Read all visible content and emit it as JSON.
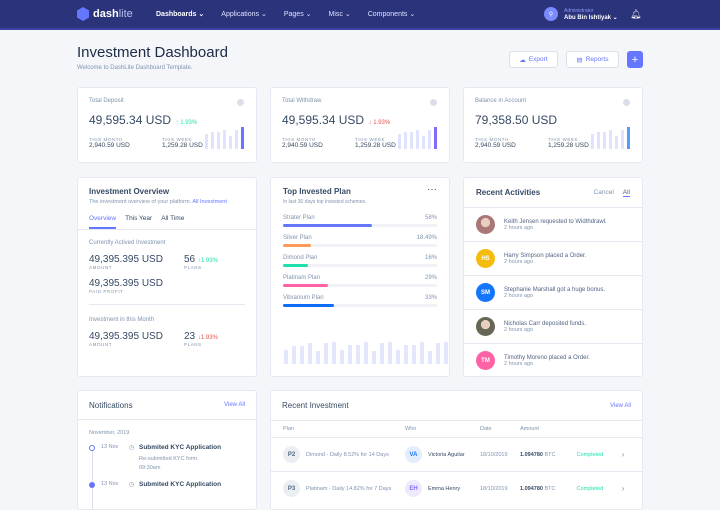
{
  "header": {
    "logo_bold": "dash",
    "logo_light": "lite",
    "nav": [
      "Dashboards",
      "Applications",
      "Pages",
      "Misc",
      "Components"
    ],
    "user_role": "Administrator",
    "user_name": "Abu Bin Ishtiyak"
  },
  "page": {
    "title": "Investment Dashboard",
    "subtitle": "Welcome to DashLite Dashboard Template.",
    "export_label": "Export",
    "reports_label": "Reports",
    "add_label": "+"
  },
  "stats": [
    {
      "label": "Total Deposit",
      "value": "49,595.34 USD",
      "change": "1.93%",
      "dir": "up",
      "this_month_label": "THIS MONTH",
      "this_month": "2,940.59 USD",
      "this_week_label": "THIS WEEK",
      "this_week": "1,259.28 USD",
      "accent": "#6576ff"
    },
    {
      "label": "Total Withdraw",
      "value": "49,595.34 USD",
      "change": "1.93%",
      "dir": "down",
      "this_month_label": "THIS MONTH",
      "this_month": "2,940.59 USD",
      "this_week_label": "THIS WEEK",
      "this_week": "1,259.28 USD",
      "accent": "#816bff"
    },
    {
      "label": "Balance in Account",
      "value": "79,358.50 USD",
      "change": "",
      "dir": "",
      "this_month_label": "THIS MONTH",
      "this_month": "2,940.59 USD",
      "this_week_label": "THIS WEEK",
      "this_week": "1,259.28 USD",
      "accent": "#559bfb"
    }
  ],
  "overview": {
    "title": "Investment Overview",
    "subtitle": "The investment overview of your platform.",
    "link": "All Investment",
    "tabs": [
      "Overview",
      "This Year",
      "All Time"
    ],
    "section1": "Currently Actived Investment",
    "amount1": "49,395.395 USD",
    "amount_label": "AMOUNT",
    "plans1": "56",
    "plans1_change": "1.93%",
    "plans_label": "PLANS",
    "profit": "49,395.395 USD",
    "profit_label": "PAID PROFIT",
    "section2": "Investment in this Month",
    "amount2": "49,395.395 USD",
    "plans2": "23",
    "plans2_change": "1.93%"
  },
  "top_plans": {
    "title": "Top Invested Plan",
    "subtitle": "In last 30 days top invested schemes.",
    "plans": [
      {
        "name": "Strater Plan",
        "pct": "58%",
        "value": 58,
        "color": "#6576ff"
      },
      {
        "name": "Silver Plan",
        "pct": "18.49%",
        "value": 18.49,
        "color": "#ff9a56"
      },
      {
        "name": "Dimond Plan",
        "pct": "16%",
        "value": 16,
        "color": "#1ee0ac"
      },
      {
        "name": "Platinam Plan",
        "pct": "29%",
        "value": 29,
        "color": "#ff63a5"
      },
      {
        "name": "Vibranium Plan",
        "pct": "33%",
        "value": 33,
        "color": "#0d6efd"
      }
    ]
  },
  "activities": {
    "title": "Recent Activities",
    "cancel": "Cancel",
    "all": "All",
    "items": [
      {
        "initials": "",
        "photo": true,
        "text": "Keith Jensen requested to Widthdrawl.",
        "time": "2 hours ago",
        "color": "#a77"
      },
      {
        "initials": "HS",
        "text": "Harry Simpson placed a Order.",
        "time": "2 hours ago",
        "color": "#f4bd0e"
      },
      {
        "initials": "SM",
        "text": "Stephanie Marshall got a huge bonus.",
        "time": "2 hours ago",
        "color": "#1676fb"
      },
      {
        "initials": "",
        "photo": true,
        "text": "Nicholas Carr deposited funds.",
        "time": "2 hours ago",
        "color": "#665"
      },
      {
        "initials": "TM",
        "text": "Timothy Moreno placed a Order.",
        "time": "2 hours ago",
        "color": "#ff63a5"
      }
    ]
  },
  "notifications": {
    "title": "Notifications",
    "view_all": "View All",
    "month": "November, 2019",
    "items": [
      {
        "date": "13 Nov",
        "title": "Submited KYC Application",
        "desc": "Re-submitted KYC form.",
        "time": "09:30am"
      },
      {
        "date": "13 Nov",
        "title": "Submited KYC Application"
      }
    ]
  },
  "investments": {
    "title": "Recent Investment",
    "view_all": "View All",
    "columns": [
      "Plan",
      "Who",
      "Date",
      "Amount"
    ],
    "rows": [
      {
        "code": "P2",
        "plan": "Dimond - Daily 8.52% for 14 Days",
        "initials": "VA",
        "who": "Victoria Aguilar",
        "date": "18/10/2019",
        "amount": "1.094780",
        "unit": "BTC",
        "status": "Completed",
        "av_bg": "#e3edfc",
        "av_fg": "#1676fb"
      },
      {
        "code": "P3",
        "plan": "Platinam - Daily 14.82% for 7 Days",
        "initials": "EH",
        "who": "Emma Henry",
        "date": "18/10/2019",
        "amount": "1.094780",
        "unit": "BTC",
        "status": "Completed",
        "av_bg": "#eee9fc",
        "av_fg": "#816bff"
      }
    ]
  }
}
